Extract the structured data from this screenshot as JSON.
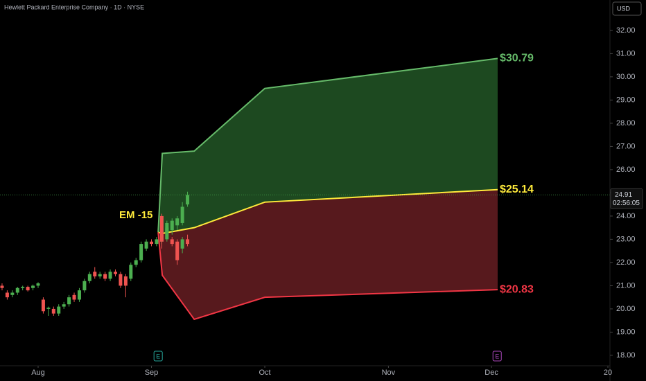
{
  "chart_data": {
    "type": "candlestick",
    "title": "Hewlett Packard Enterprise Company · 1D · NYSE",
    "currency": "USD",
    "up_color": "#4caf50",
    "down_color": "#ef5350",
    "grid": false,
    "x": [
      -7,
      -6,
      -5,
      -4,
      -3,
      -2,
      -1,
      0,
      1,
      2,
      3,
      4,
      5,
      6,
      7,
      8,
      9,
      10,
      11,
      12,
      13,
      14,
      15,
      16,
      17,
      18,
      19,
      20,
      21,
      22,
      23,
      24,
      25,
      26,
      27,
      28,
      29
    ],
    "open": [
      21.0,
      20.7,
      20.6,
      20.7,
      20.9,
      20.95,
      20.9,
      21.0,
      20.4,
      20.0,
      20.0,
      19.8,
      20.1,
      20.2,
      20.6,
      20.4,
      20.8,
      21.2,
      21.6,
      21.4,
      21.5,
      21.3,
      21.6,
      21.5,
      21.4,
      21.3,
      21.9,
      22.1,
      22.6,
      22.9,
      22.8,
      22.9,
      23.0,
      23.0,
      22.9,
      22.6,
      23.0
    ],
    "high": [
      21.1,
      20.8,
      20.8,
      20.95,
      21.0,
      21.0,
      21.05,
      21.15,
      20.5,
      20.1,
      20.1,
      20.2,
      20.3,
      20.6,
      20.7,
      20.9,
      21.3,
      21.6,
      21.8,
      21.6,
      21.6,
      21.7,
      21.7,
      21.6,
      21.5,
      22.0,
      22.2,
      22.9,
      23.0,
      23.0,
      23.1,
      23.3,
      23.6,
      23.1,
      23.0,
      23.1,
      23.2
    ],
    "low": [
      20.8,
      20.4,
      20.5,
      20.6,
      20.8,
      20.75,
      20.8,
      20.9,
      19.8,
      19.7,
      19.7,
      19.7,
      20.0,
      20.1,
      20.3,
      20.3,
      20.7,
      21.1,
      21.3,
      21.3,
      21.2,
      21.2,
      21.4,
      20.9,
      20.5,
      21.2,
      21.8,
      22.0,
      22.5,
      22.7,
      22.7,
      22.8,
      22.9,
      22.7,
      21.9,
      22.4,
      22.7
    ],
    "close": [
      20.9,
      20.5,
      20.7,
      20.9,
      20.95,
      20.8,
      21.0,
      21.1,
      19.9,
      20.05,
      19.8,
      20.1,
      20.2,
      20.5,
      20.4,
      20.8,
      21.2,
      21.5,
      21.4,
      21.5,
      21.3,
      21.6,
      21.5,
      21.0,
      21.0,
      21.9,
      22.1,
      22.8,
      22.9,
      22.8,
      23.0,
      23.2,
      23.5,
      22.8,
      22.1,
      23.0,
      22.8
    ],
    "bands": {
      "x": [
        23.3,
        24.1,
        30.3,
        44,
        89.2
      ],
      "upper_fill": "#1f4d22",
      "lower_fill": "#5c1a1f",
      "series": [
        {
          "color": "#66bb6a",
          "values": [
            23.3,
            26.7,
            26.8,
            29.5,
            30.79
          ],
          "value_label": "$30.79"
        },
        {
          "color": "#ffeb3b",
          "values": [
            23.3,
            23.25,
            23.5,
            24.6,
            25.14
          ],
          "value_label": "$25.14"
        },
        {
          "color": "#f23645",
          "values": [
            23.3,
            21.45,
            19.55,
            20.5,
            20.83
          ],
          "value_label": "$20.83"
        }
      ]
    },
    "late_candles": {
      "x": [
        24,
        25,
        26,
        27,
        28,
        29
      ],
      "open": [
        24.0,
        23.3,
        23.4,
        23.6,
        23.7,
        24.5
      ],
      "high": [
        24.1,
        23.8,
        23.9,
        24.0,
        24.6,
        25.05
      ],
      "low": [
        22.6,
        23.0,
        23.2,
        23.4,
        23.6,
        24.4
      ],
      "close": [
        22.9,
        23.7,
        23.8,
        23.9,
        24.4,
        24.91
      ]
    },
    "annotation": {
      "text": "EM -15",
      "x": 19,
      "y": 24.03,
      "color": "#ffeb3b"
    },
    "last_price": 24.91,
    "countdown": "02:56:05",
    "events": [
      {
        "label": "E",
        "x": 23.3,
        "color": "#26a69a"
      },
      {
        "label": "E",
        "x": 89.1,
        "color": "#ab47bc"
      }
    ],
    "xlim": [
      -7.4,
      111.0
    ],
    "xticks": [
      {
        "value": 0,
        "label": "Aug"
      },
      {
        "value": 22,
        "label": "Sep"
      },
      {
        "value": 44,
        "label": "Oct"
      },
      {
        "value": 68,
        "label": "Nov"
      },
      {
        "value": 88,
        "label": "Dec"
      },
      {
        "value": 110.6,
        "label": "20"
      }
    ],
    "ylim": [
      17.55,
      33.31
    ],
    "yticks": [
      {
        "value": 18,
        "label": "18.00"
      },
      {
        "value": 19,
        "label": "19.00"
      },
      {
        "value": 20,
        "label": "20.00"
      },
      {
        "value": 21,
        "label": "21.00"
      },
      {
        "value": 22,
        "label": "22.00"
      },
      {
        "value": 23,
        "label": "23.00"
      },
      {
        "value": 24,
        "label": "24.00"
      },
      {
        "value": 25,
        "label": "25.00"
      },
      {
        "value": 26,
        "label": "26.00"
      },
      {
        "value": 27,
        "label": "27.00"
      },
      {
        "value": 28,
        "label": "28.00"
      },
      {
        "value": 29,
        "label": "29.00"
      },
      {
        "value": 30,
        "label": "30.00"
      },
      {
        "value": 31,
        "label": "31.00"
      },
      {
        "value": 32,
        "label": "32.00"
      }
    ]
  }
}
